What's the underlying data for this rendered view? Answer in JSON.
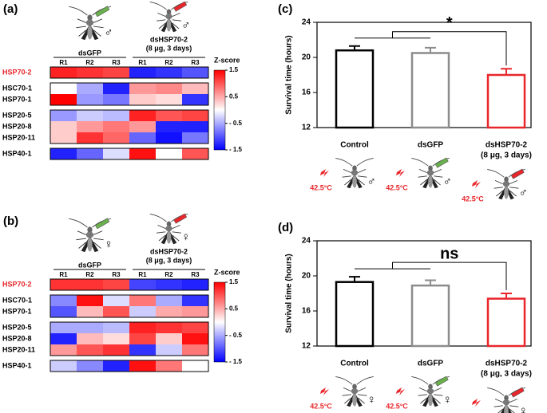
{
  "chart_data": [
    {
      "type": "heatmap",
      "panel": "(a)",
      "sex": "♂",
      "columns": [
        "R1",
        "R2",
        "R3",
        "R1",
        "R2",
        "R3"
      ],
      "groups": [
        "dsGFP",
        "dsHSP70-2"
      ],
      "group_note": "(8 μg, 3 days)",
      "blocks": [
        {
          "rows": [
            "HSP70-2"
          ],
          "label_color": "#e8262b",
          "values": [
            [
              1.3,
              1.2,
              1.1,
              -1.3,
              -1.2,
              -1.0
            ]
          ]
        },
        {
          "rows": [
            "HSC70-1",
            "HSP70-1"
          ],
          "values": [
            [
              0,
              -0.5,
              -1.3,
              0.6,
              0.7,
              0.4
            ],
            [
              1.5,
              -0.6,
              -0.8,
              0.3,
              0.2,
              -1.2
            ]
          ]
        },
        {
          "rows": [
            "HSP20-5",
            "HSP20-8",
            "HSP20-11"
          ],
          "values": [
            [
              -0.6,
              -0.3,
              -0.4,
              1.3,
              1.0,
              1.1
            ],
            [
              0.3,
              0.6,
              0.8,
              0.6,
              -1.3,
              -1.3
            ],
            [
              0.3,
              1.2,
              0.9,
              -0.9,
              -1.4,
              -0.8
            ]
          ]
        },
        {
          "rows": [
            "HSP40-1"
          ],
          "values": [
            [
              -1.3,
              -0.9,
              -0.2,
              1.4,
              0,
              1.0
            ]
          ]
        }
      ],
      "colorbar_title": "Z-score",
      "zlim": [
        -1.5,
        1.5
      ],
      "zticks": [
        1.5,
        0.5,
        {
          "value": -0.5,
          "label": "- 0.5"
        },
        {
          "value": -1.5,
          "label": "- 1.5"
        }
      ],
      "colors": [
        "#0000ff",
        "#ffffff",
        "#ff0000"
      ]
    },
    {
      "type": "heatmap",
      "panel": "(b)",
      "sex": "♀",
      "columns": [
        "R1",
        "R2",
        "R3",
        "R1",
        "R2",
        "R3"
      ],
      "groups": [
        "dsGFP",
        "dsHSP70-2"
      ],
      "group_note": "(8 μg, 3 days)",
      "blocks": [
        {
          "rows": [
            "HSP70-2"
          ],
          "label_color": "#e8262b",
          "values": [
            [
              1.2,
              1.2,
              1.1,
              -1.1,
              -1.2,
              -1.3
            ]
          ]
        },
        {
          "rows": [
            "HSC70-1",
            "HSP70-1"
          ],
          "values": [
            [
              -0.7,
              1.4,
              -0.2,
              0.8,
              -0.5,
              -1.2
            ],
            [
              -1.0,
              0.4,
              1.0,
              -0.3,
              0.5,
              0.6
            ]
          ]
        },
        {
          "rows": [
            "HSP20-5",
            "HSP20-8",
            "HSP20-11"
          ],
          "values": [
            [
              -0.5,
              -0.5,
              -0.4,
              1.3,
              1.2,
              1.1
            ],
            [
              -1.3,
              0.4,
              0.2,
              1.1,
              0.3,
              1.4
            ],
            [
              0.6,
              1.0,
              1.2,
              -1.2,
              -0.3,
              0.8
            ]
          ]
        },
        {
          "rows": [
            "HSP40-1"
          ],
          "values": [
            [
              -0.3,
              -0.7,
              -1.3,
              1.4,
              0.8,
              0
            ]
          ]
        }
      ],
      "colorbar_title": "Z-score",
      "zlim": [
        -1.5,
        1.5
      ],
      "zticks": [
        1.5,
        0.5,
        {
          "value": -0.5,
          "label": "- 0.5"
        },
        {
          "value": -1.5,
          "label": "- 1.5"
        }
      ],
      "colors": [
        "#0000ff",
        "#ffffff",
        "#ff0000"
      ]
    },
    {
      "type": "bar",
      "panel": "(c)",
      "sex": "♂",
      "ylabel": "Survival time (hours)",
      "categories": [
        "Control",
        "dsGFP",
        "dsHSP70-2"
      ],
      "dose_label": "(8 μg, 3 days)",
      "values": [
        20.8,
        20.5,
        18.0
      ],
      "errors": [
        0.5,
        0.6,
        0.7
      ],
      "colors": [
        "#000000",
        "#8c8c8c",
        "#e8262b"
      ],
      "ylim": [
        12,
        24
      ],
      "yticks": [
        12,
        16,
        20,
        24
      ],
      "annotation": "*",
      "temperature": "42.5°C"
    },
    {
      "type": "bar",
      "panel": "(d)",
      "sex": "♀",
      "ylabel": "Survival time (hours)",
      "categories": [
        "Control",
        "dsGFP",
        "dsHSP70-2"
      ],
      "dose_label": "(8 μg, 3 days)",
      "values": [
        19.3,
        18.9,
        17.4
      ],
      "errors": [
        0.6,
        0.6,
        0.6
      ],
      "colors": [
        "#000000",
        "#8c8c8c",
        "#e8262b"
      ],
      "ylim": [
        12,
        24
      ],
      "yticks": [
        12,
        16,
        20,
        24
      ],
      "annotation": "ns",
      "temperature": "42.5°C"
    }
  ]
}
